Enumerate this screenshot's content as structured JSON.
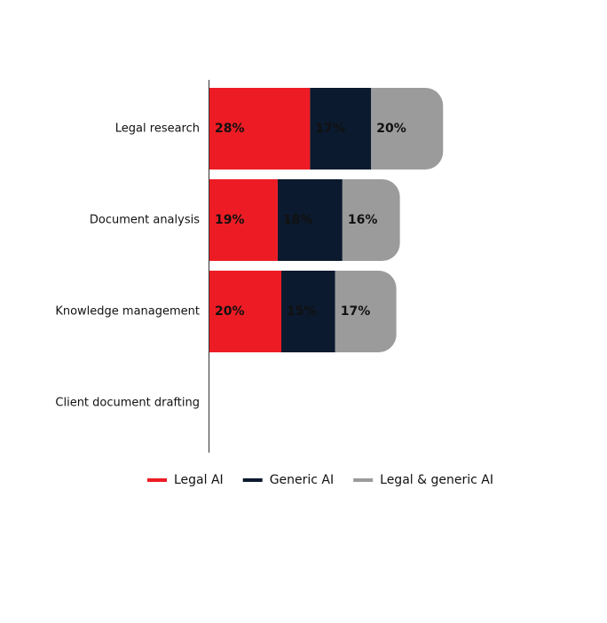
{
  "chart_data": {
    "type": "stacked-bar-horizontal",
    "categories": [
      "Legal research",
      "Document analysis",
      "Knowledge management",
      "Client document drafting"
    ],
    "series": [
      {
        "name": "Legal AI",
        "color": "#ed1c24",
        "values": [
          28,
          19,
          20,
          null
        ],
        "value_labels": [
          "28%",
          "19%",
          "20%",
          null
        ]
      },
      {
        "name": "Generic AI",
        "color": "#0b1a2e",
        "values": [
          17,
          18,
          15,
          null
        ],
        "value_labels": [
          "17%",
          "18%",
          "15%",
          null
        ]
      },
      {
        "name": "Legal & generic AI",
        "color": "#9b9b9b",
        "values": [
          20,
          16,
          17,
          null
        ],
        "value_labels": [
          "20%",
          "16%",
          "17%",
          null
        ]
      }
    ]
  }
}
